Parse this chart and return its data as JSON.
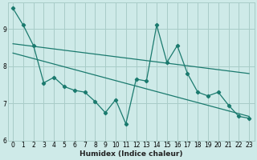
{
  "title": "",
  "xlabel": "Humidex (Indice chaleur)",
  "bg_color": "#ceeae8",
  "line_color": "#1a7a6e",
  "grid_color": "#a8ccc8",
  "xlim": [
    -0.5,
    23.5
  ],
  "ylim": [
    6.0,
    9.7
  ],
  "yticks": [
    6,
    7,
    8,
    9
  ],
  "xticks": [
    0,
    1,
    2,
    3,
    4,
    5,
    6,
    7,
    8,
    9,
    10,
    11,
    12,
    13,
    14,
    15,
    16,
    17,
    18,
    19,
    20,
    21,
    22,
    23
  ],
  "jagged_x": [
    0,
    1,
    2,
    3,
    4,
    5,
    6,
    7,
    8,
    9,
    10,
    11,
    12,
    13,
    14,
    15,
    16,
    17,
    18,
    19,
    20,
    21,
    22,
    23
  ],
  "jagged_y": [
    9.55,
    9.1,
    8.55,
    7.55,
    7.7,
    7.45,
    7.35,
    7.3,
    7.05,
    6.75,
    7.1,
    6.45,
    7.65,
    7.6,
    9.1,
    8.1,
    8.55,
    7.8,
    7.3,
    7.2,
    7.3,
    6.95,
    6.65,
    6.6
  ],
  "trend1_x": [
    0,
    23
  ],
  "trend1_y": [
    8.6,
    7.8
  ],
  "trend2_x": [
    0,
    23
  ],
  "trend2_y": [
    8.35,
    6.65
  ]
}
